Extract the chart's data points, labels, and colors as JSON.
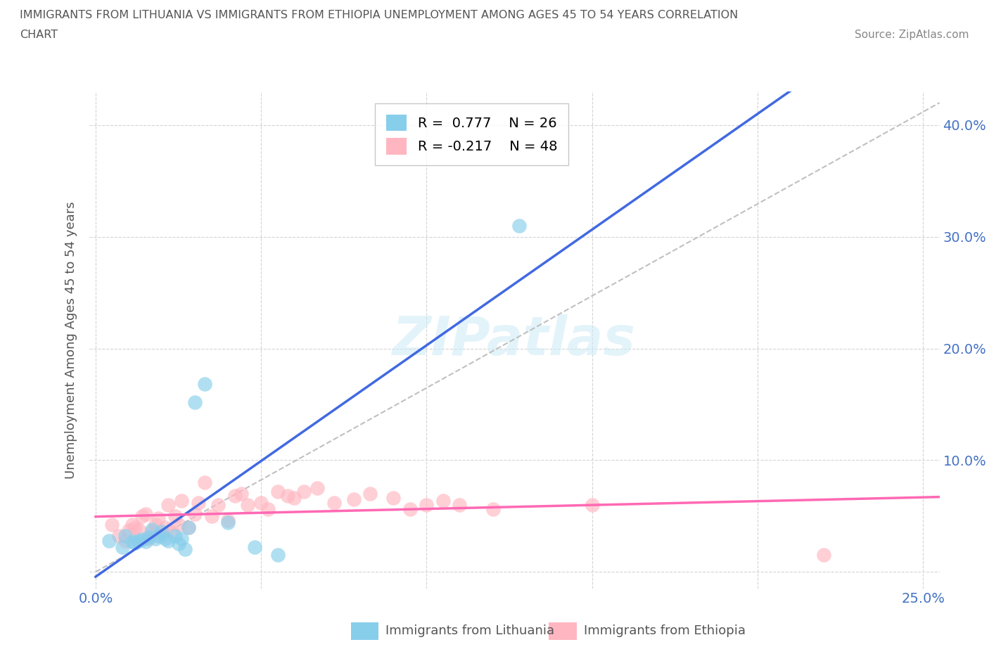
{
  "title_line1": "IMMIGRANTS FROM LITHUANIA VS IMMIGRANTS FROM ETHIOPIA UNEMPLOYMENT AMONG AGES 45 TO 54 YEARS CORRELATION",
  "title_line2": "CHART",
  "source_text": "Source: ZipAtlas.com",
  "ylabel": "Unemployment Among Ages 45 to 54 years",
  "xlim": [
    -0.002,
    0.255
  ],
  "ylim": [
    -0.015,
    0.43
  ],
  "xticks": [
    0.0,
    0.05,
    0.1,
    0.15,
    0.2,
    0.25
  ],
  "yticks": [
    0.0,
    0.1,
    0.2,
    0.3,
    0.4
  ],
  "xtick_labels": [
    "0.0%",
    "",
    "",
    "",
    "",
    "25.0%"
  ],
  "ytick_labels": [
    "",
    "10.0%",
    "20.0%",
    "30.0%",
    "40.0%"
  ],
  "r_lithuania": 0.777,
  "n_lithuania": 26,
  "r_ethiopia": -0.217,
  "n_ethiopia": 48,
  "legend_text_1": "R =  0.777    N = 26",
  "legend_text_2": "R = -0.217    N = 48",
  "color_lithuania": "#87CEEB",
  "color_ethiopia": "#FFB6C1",
  "color_trendline_lithuania": "#4169E1",
  "color_trendline_ethiopia": "#FF69B4",
  "watermark": "ZIPatlas",
  "background_color": "#ffffff",
  "lithuania_x": [
    0.004,
    0.008,
    0.009,
    0.011,
    0.012,
    0.013,
    0.014,
    0.015,
    0.016,
    0.017,
    0.018,
    0.019,
    0.02,
    0.021,
    0.022,
    0.024,
    0.025,
    0.026,
    0.027,
    0.028,
    0.03,
    0.033,
    0.04,
    0.048,
    0.055,
    0.128
  ],
  "lithuania_y": [
    0.028,
    0.022,
    0.032,
    0.027,
    0.026,
    0.028,
    0.029,
    0.027,
    0.031,
    0.038,
    0.03,
    0.032,
    0.036,
    0.03,
    0.028,
    0.032,
    0.025,
    0.03,
    0.02,
    0.04,
    0.152,
    0.168,
    0.044,
    0.022,
    0.015,
    0.31
  ],
  "ethiopia_x": [
    0.005,
    0.007,
    0.009,
    0.01,
    0.011,
    0.012,
    0.013,
    0.014,
    0.015,
    0.016,
    0.017,
    0.018,
    0.019,
    0.02,
    0.021,
    0.022,
    0.023,
    0.024,
    0.025,
    0.026,
    0.028,
    0.03,
    0.031,
    0.033,
    0.035,
    0.037,
    0.04,
    0.042,
    0.044,
    0.046,
    0.05,
    0.052,
    0.055,
    0.058,
    0.06,
    0.063,
    0.067,
    0.072,
    0.078,
    0.083,
    0.09,
    0.095,
    0.1,
    0.105,
    0.11,
    0.12,
    0.15,
    0.22
  ],
  "ethiopia_y": [
    0.042,
    0.032,
    0.028,
    0.037,
    0.042,
    0.04,
    0.038,
    0.05,
    0.052,
    0.03,
    0.036,
    0.042,
    0.048,
    0.032,
    0.04,
    0.06,
    0.036,
    0.05,
    0.042,
    0.064,
    0.04,
    0.052,
    0.062,
    0.08,
    0.05,
    0.06,
    0.046,
    0.068,
    0.07,
    0.06,
    0.062,
    0.056,
    0.072,
    0.068,
    0.066,
    0.072,
    0.075,
    0.062,
    0.065,
    0.07,
    0.066,
    0.056,
    0.06,
    0.064,
    0.06,
    0.056,
    0.06,
    0.015
  ]
}
